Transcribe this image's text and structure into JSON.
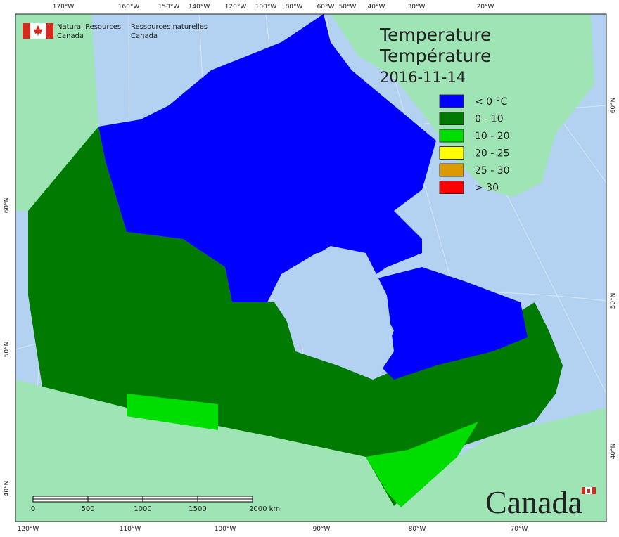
{
  "header": {
    "org_en": [
      "Natural Resources",
      "Canada"
    ],
    "org_fr": [
      "Ressources naturelles",
      "Canada"
    ]
  },
  "title": {
    "lines": [
      "Temperature",
      "Température"
    ],
    "date": "2016-11-14"
  },
  "legend": [
    {
      "label": "< 0 °C",
      "color": "#0000ff"
    },
    {
      "label": "0 - 10",
      "color": "#007a00"
    },
    {
      "label": "10 - 20",
      "color": "#00dd00"
    },
    {
      "label": "20 - 25",
      "color": "#ffff00"
    },
    {
      "label": "25 - 30",
      "color": "#dd9900"
    },
    {
      "label": "> 30",
      "color": "#ff0000"
    }
  ],
  "graticule": {
    "top": [
      "170°W",
      "160°W",
      "150°W",
      "140°W",
      "120°W",
      "100°W",
      "80°W",
      "60°W",
      "50°W",
      "40°W",
      "30°W",
      "20°W"
    ],
    "bottom": [
      "120°W",
      "110°W",
      "100°W",
      "90°W",
      "80°W",
      "70°W"
    ],
    "left": [
      "60°N",
      "50°N",
      "40°N"
    ],
    "right": [
      "60°N",
      "50°N",
      "40°N"
    ]
  },
  "scale_bar": {
    "labels": [
      "0",
      "500",
      "1000",
      "1500",
      "2000 km"
    ]
  },
  "wordmark": "Canada"
}
